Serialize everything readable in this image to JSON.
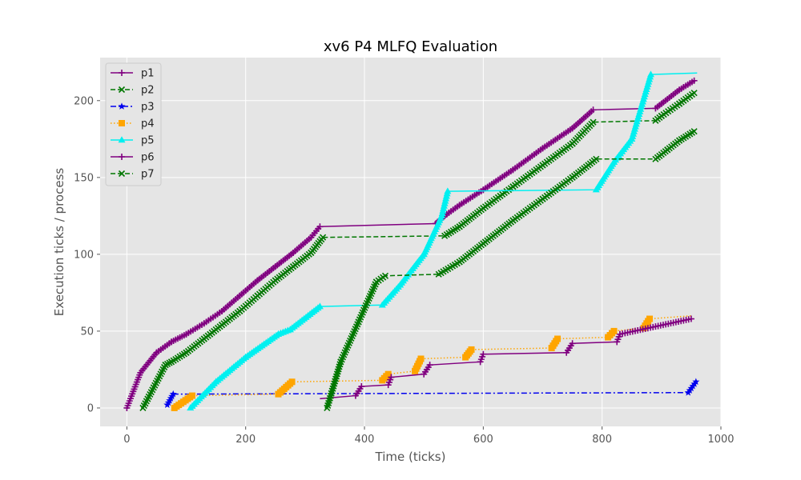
{
  "chart_data": {
    "type": "line",
    "title": "xv6 P4 MLFQ Evaluation",
    "xlabel": "Time (ticks)",
    "ylabel": "Execution ticks / process",
    "xlim": [
      -45,
      1000
    ],
    "ylim": [
      -12,
      228
    ],
    "xticks": [
      0,
      200,
      400,
      600,
      800,
      1000
    ],
    "yticks": [
      0,
      50,
      100,
      150,
      200
    ],
    "grid": true,
    "legend_position": "top-left",
    "series": [
      {
        "name": "p1",
        "color": "#800080",
        "linestyle": "solid",
        "marker": "plus",
        "x": [
          0,
          23,
          50,
          75,
          100,
          130,
          160,
          190,
          220,
          250,
          280,
          310,
          325,
          520,
          535,
          560,
          600,
          650,
          700,
          750,
          785,
          890,
          900,
          930,
          955
        ],
        "y": [
          0,
          23,
          36,
          43,
          48,
          55,
          63,
          73,
          83,
          92,
          101,
          111,
          118,
          120,
          125,
          132,
          142,
          155,
          169,
          182,
          194,
          195,
          198,
          207,
          213
        ]
      },
      {
        "name": "p2",
        "color": "#007700",
        "linestyle": "dashed",
        "marker": "x",
        "x": [
          27,
          65,
          75,
          100,
          130,
          160,
          190,
          220,
          250,
          280,
          310,
          330,
          535,
          560,
          600,
          650,
          700,
          750,
          785,
          890,
          900,
          930,
          955
        ],
        "y": [
          0,
          28,
          30,
          36,
          45,
          54,
          63,
          73,
          83,
          92,
          101,
          111,
          112,
          118,
          130,
          144,
          158,
          172,
          186,
          187,
          190,
          198,
          205
        ]
      },
      {
        "name": "p3",
        "color": "#0000ee",
        "linestyle": "dashdot",
        "marker": "star",
        "x": [
          68,
          78,
          945,
          958
        ],
        "y": [
          2,
          9,
          10,
          17
        ]
      },
      {
        "name": "p4",
        "color": "#ffa500",
        "linestyle": "dotted",
        "marker": "square",
        "x": [
          80,
          110,
          255,
          278,
          430,
          440,
          485,
          495,
          570,
          580,
          715,
          725,
          810,
          820,
          870,
          880,
          950
        ],
        "y": [
          0,
          8,
          9,
          17,
          18,
          22,
          24,
          32,
          33,
          38,
          39,
          45,
          46,
          50,
          52,
          58,
          60
        ]
      },
      {
        "name": "p5",
        "color": "#00f0f0",
        "linestyle": "solid",
        "marker": "triangle",
        "x": [
          107,
          150,
          200,
          255,
          275,
          325,
          430,
          460,
          500,
          530,
          540,
          790,
          820,
          850,
          882,
          960
        ],
        "y": [
          0,
          17,
          33,
          48,
          51,
          66,
          67,
          80,
          100,
          125,
          141,
          142,
          160,
          175,
          217,
          218
        ]
      },
      {
        "name": "p6",
        "color": "#800080",
        "linestyle": "solid",
        "marker": "plus",
        "x": [
          325,
          385,
          395,
          440,
          445,
          500,
          510,
          595,
          600,
          740,
          750,
          825,
          830,
          950
        ],
        "y": [
          6,
          8,
          14,
          15,
          20,
          22,
          28,
          30,
          35,
          36,
          42,
          43,
          48,
          58
        ]
      },
      {
        "name": "p7",
        "color": "#007700",
        "linestyle": "dashed",
        "marker": "x",
        "x": [
          337,
          360,
          390,
          420,
          435,
          525,
          560,
          600,
          650,
          700,
          750,
          790,
          890,
          910,
          930,
          955
        ],
        "y": [
          0,
          30,
          56,
          82,
          86,
          87,
          95,
          107,
          122,
          136,
          150,
          162,
          162,
          168,
          174,
          180
        ]
      }
    ]
  }
}
